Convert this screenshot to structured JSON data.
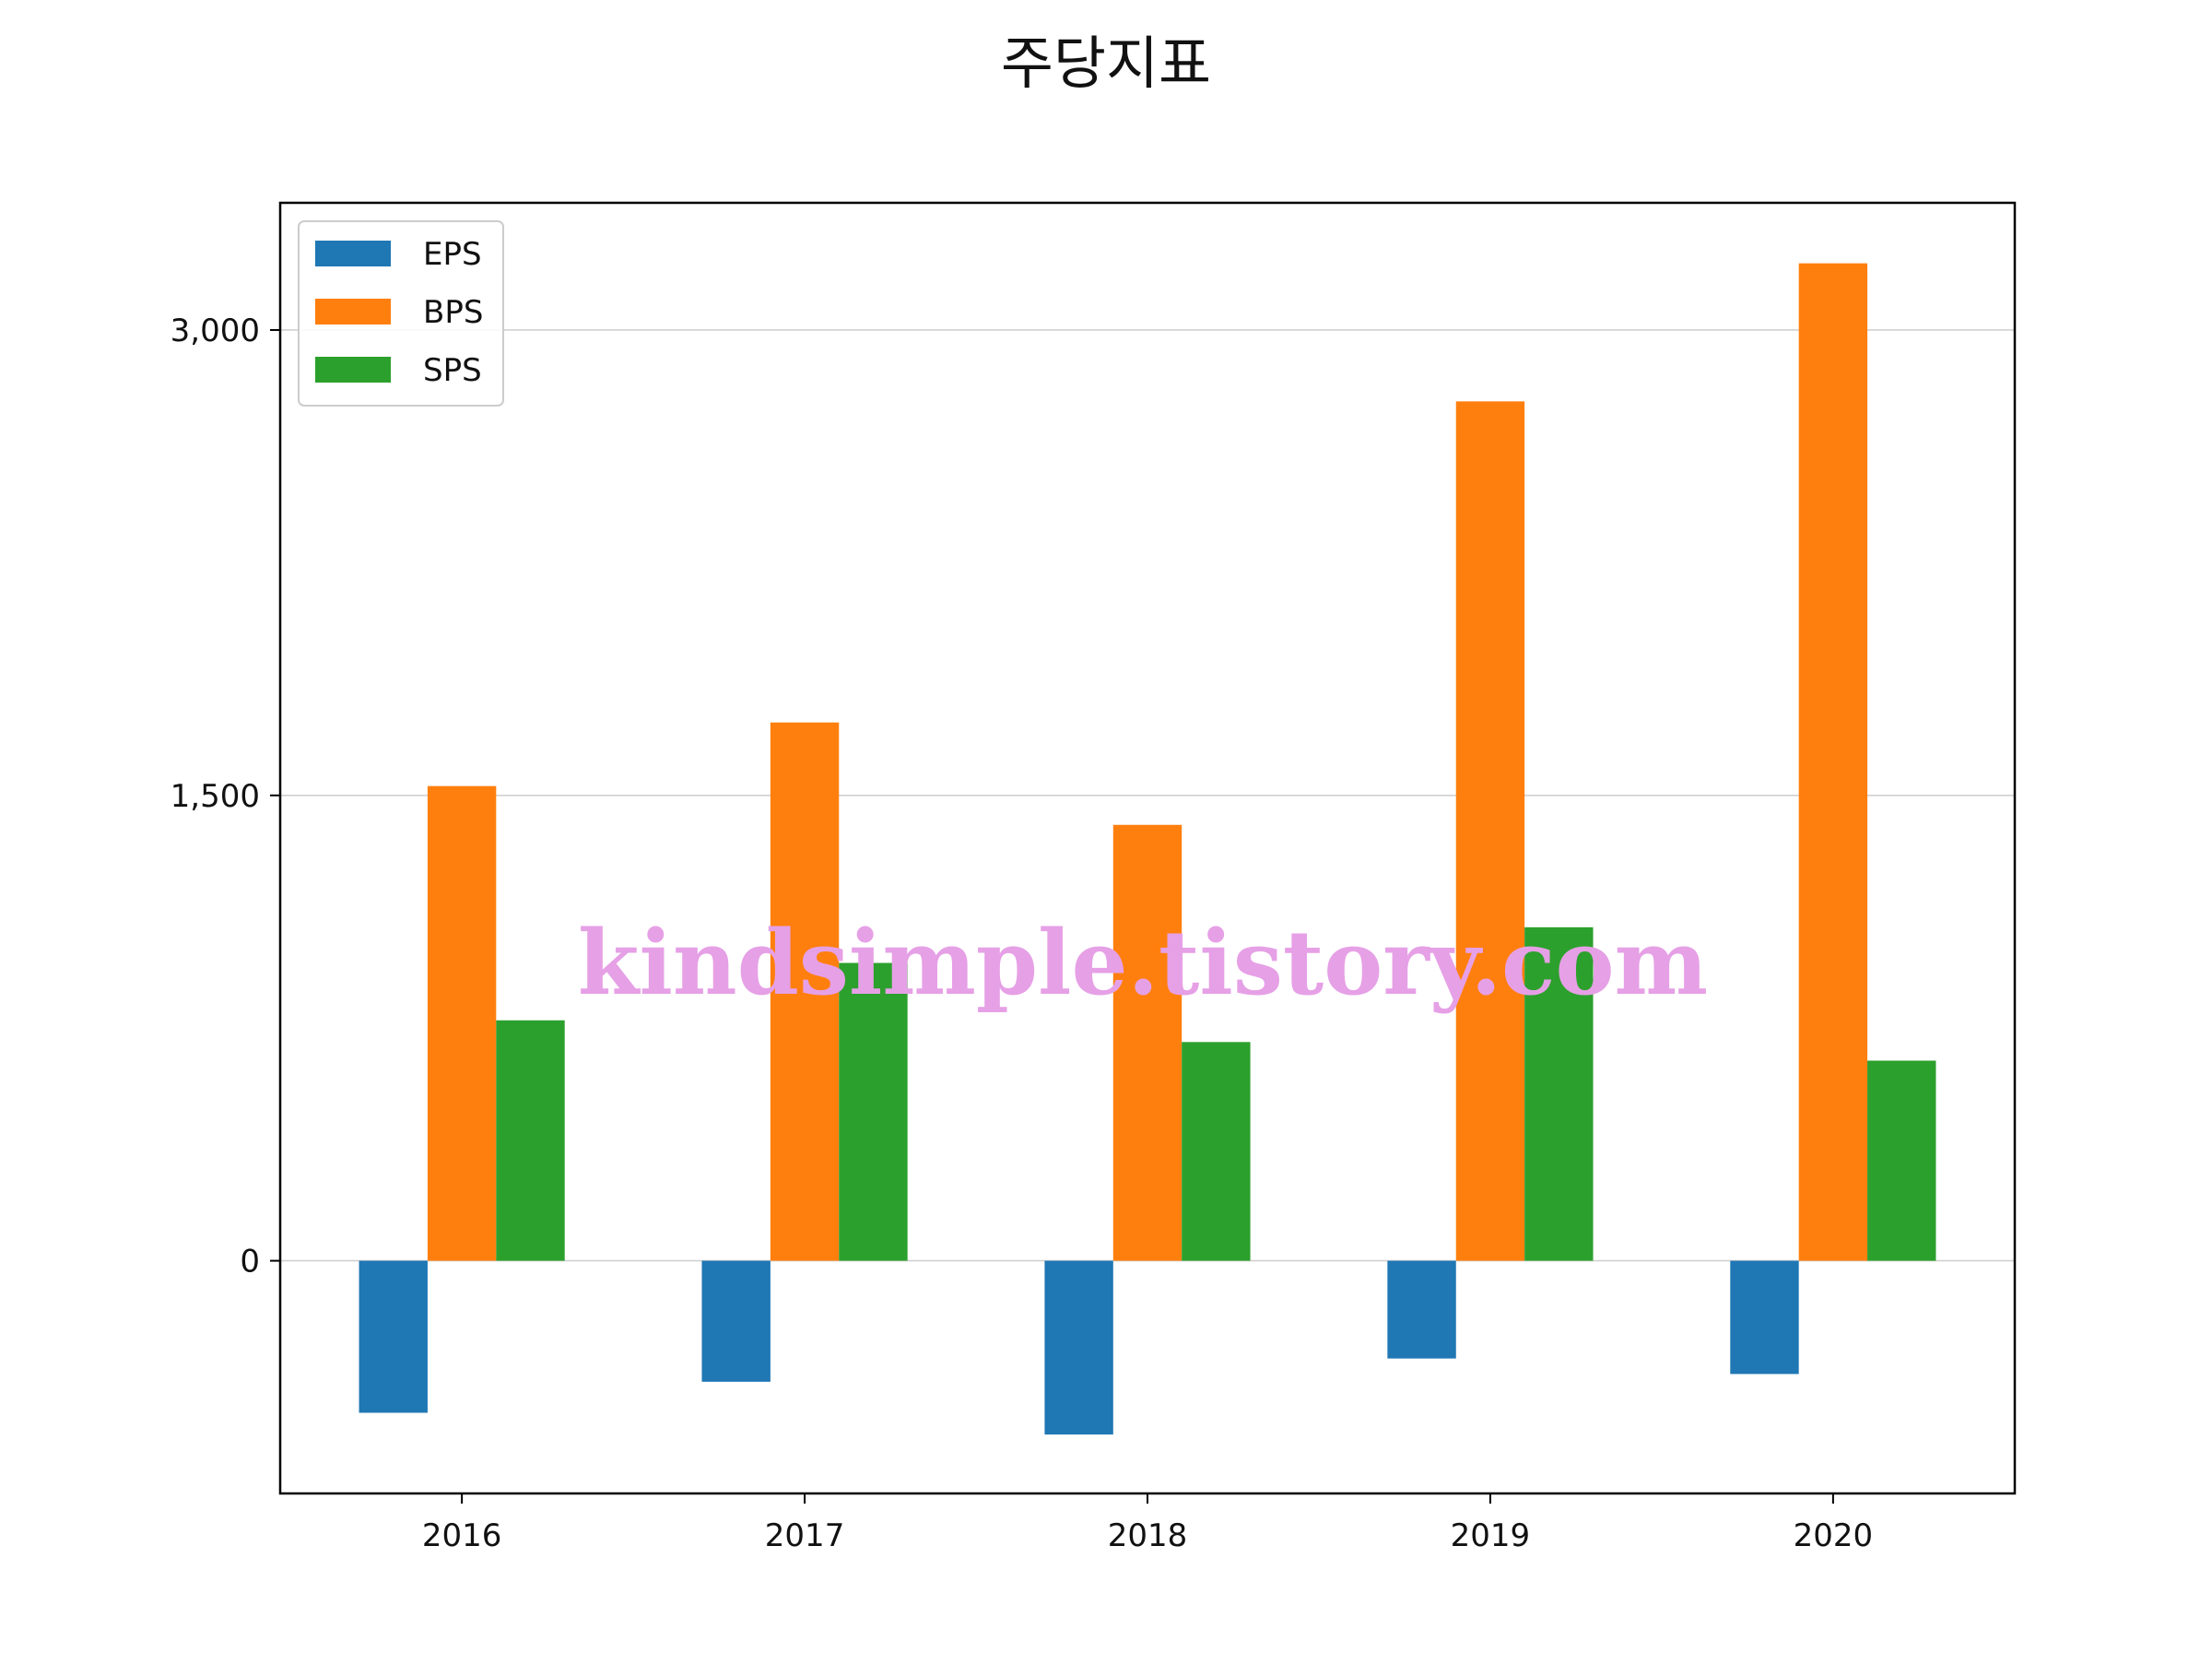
{
  "chart_data": {
    "type": "bar",
    "title": "주당지표",
    "xlabel": "",
    "ylabel": "",
    "categories": [
      "2016",
      "2017",
      "2018",
      "2019",
      "2020"
    ],
    "series": [
      {
        "name": "EPS",
        "values": [
          -490,
          -390,
          -560,
          -315,
          -365
        ],
        "color": "#1f77b4"
      },
      {
        "name": "BPS",
        "values": [
          1530,
          1735,
          1405,
          2770,
          3215
        ],
        "color": "#ff7f0e"
      },
      {
        "name": "SPS",
        "values": [
          775,
          960,
          705,
          1075,
          645
        ],
        "color": "#2ca02c"
      }
    ],
    "ylim": [
      -750,
      3410
    ],
    "yticks": [
      0,
      1500,
      3000
    ],
    "ytick_labels": [
      "0",
      "1,500",
      "3,000"
    ],
    "grid": "horizontal",
    "legend": "top-left"
  },
  "watermark": "kindsimple.tistory.com"
}
